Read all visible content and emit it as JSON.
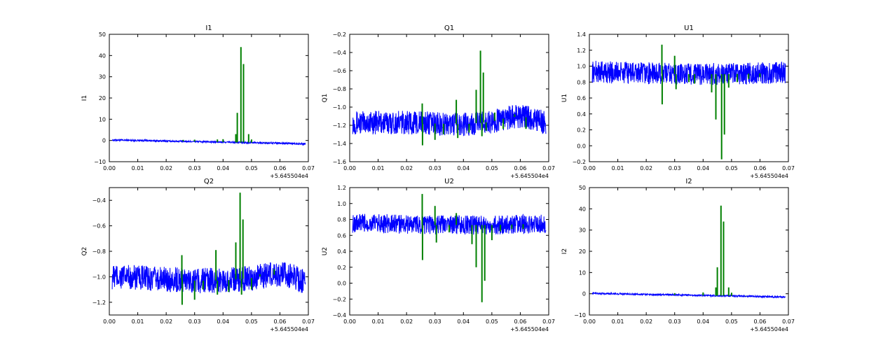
{
  "chart_data": [
    {
      "type": "line",
      "title": "I1",
      "ylabel": "I1",
      "xlabel": "",
      "x_offset": "+5.645504e4",
      "xlim": [
        0.0,
        0.07
      ],
      "ylim": [
        -10,
        50
      ],
      "xticks": [
        "0.00",
        "0.01",
        "0.02",
        "0.03",
        "0.04",
        "0.05",
        "0.06",
        "0.07"
      ],
      "yticks": [
        "−10",
        "0",
        "10",
        "20",
        "30",
        "40",
        "50"
      ],
      "series": [
        {
          "color": "#0000ff",
          "x": [
            0.001,
            0.01,
            0.02,
            0.03,
            0.04,
            0.05,
            0.06,
            0.069
          ],
          "y": [
            0.2,
            0.0,
            -0.3,
            -0.5,
            -0.8,
            -1.0,
            -1.3,
            -1.6
          ],
          "band": 0.4
        },
        {
          "color": "#008000",
          "spikes": [
            [
              0.026,
              0.3
            ],
            [
              0.03,
              0.4
            ],
            [
              0.038,
              0.5
            ],
            [
              0.04,
              0.6
            ],
            [
              0.0445,
              3.0
            ],
            [
              0.045,
              13.0
            ],
            [
              0.0463,
              44.0
            ],
            [
              0.0472,
              36.0
            ],
            [
              0.049,
              3.0
            ],
            [
              0.05,
              0.5
            ],
            [
              0.055,
              -1.0
            ]
          ]
        }
      ]
    },
    {
      "type": "line",
      "title": "Q1",
      "ylabel": "Q1",
      "xlabel": "",
      "x_offset": "+5.645504e4",
      "xlim": [
        0.0,
        0.07
      ],
      "ylim": [
        -1.6,
        -0.2
      ],
      "xticks": [
        "0.00",
        "0.01",
        "0.02",
        "0.03",
        "0.04",
        "0.05",
        "0.06",
        "0.07"
      ],
      "yticks": [
        "−1.6",
        "−1.4",
        "−1.2",
        "−1.0",
        "−0.8",
        "−0.6",
        "−0.4",
        "−0.2"
      ],
      "series": [
        {
          "color": "#0000ff",
          "x": [
            0.001,
            0.01,
            0.02,
            0.03,
            0.04,
            0.05,
            0.055,
            0.06,
            0.065,
            0.069
          ],
          "y": [
            -1.17,
            -1.17,
            -1.17,
            -1.18,
            -1.19,
            -1.16,
            -1.12,
            -1.1,
            -1.13,
            -1.18
          ],
          "band": 0.13
        },
        {
          "color": "#008000",
          "spikes": [
            [
              0.0255,
              -0.96
            ],
            [
              0.0256,
              -1.42
            ],
            [
              0.03,
              -1.36
            ],
            [
              0.033,
              -1.3
            ],
            [
              0.0375,
              -0.92
            ],
            [
              0.038,
              -1.34
            ],
            [
              0.042,
              -1.28
            ],
            [
              0.0445,
              -0.81
            ],
            [
              0.046,
              -0.38
            ],
            [
              0.0465,
              -1.32
            ],
            [
              0.047,
              -0.62
            ],
            [
              0.048,
              -1.26
            ],
            [
              0.051,
              -1.06
            ],
            [
              0.054,
              -1.24
            ],
            [
              0.058,
              -1.08
            ],
            [
              0.062,
              -1.24
            ]
          ]
        }
      ]
    },
    {
      "type": "line",
      "title": "U1",
      "ylabel": "U1",
      "xlabel": "",
      "x_offset": "+5.645504e4",
      "xlim": [
        0.0,
        0.07
      ],
      "ylim": [
        -0.2,
        1.4
      ],
      "xticks": [
        "0.00",
        "0.01",
        "0.02",
        "0.03",
        "0.04",
        "0.05",
        "0.06",
        "0.07"
      ],
      "yticks": [
        "−0.2",
        "0.0",
        "0.2",
        "0.4",
        "0.6",
        "0.8",
        "1.0",
        "1.2",
        "1.4"
      ],
      "series": [
        {
          "color": "#0000ff",
          "x": [
            0.001,
            0.01,
            0.02,
            0.03,
            0.04,
            0.05,
            0.06,
            0.069
          ],
          "y": [
            0.93,
            0.92,
            0.91,
            0.9,
            0.9,
            0.9,
            0.91,
            0.92
          ],
          "band": 0.14
        },
        {
          "color": "#008000",
          "spikes": [
            [
              0.0255,
              1.27
            ],
            [
              0.0256,
              0.52
            ],
            [
              0.03,
              1.13
            ],
            [
              0.0305,
              0.71
            ],
            [
              0.035,
              0.8
            ],
            [
              0.037,
              0.78
            ],
            [
              0.043,
              0.67
            ],
            [
              0.0445,
              0.33
            ],
            [
              0.0465,
              -0.17
            ],
            [
              0.0475,
              0.14
            ],
            [
              0.049,
              0.73
            ],
            [
              0.052,
              0.8
            ],
            [
              0.056,
              0.84
            ],
            [
              0.06,
              0.86
            ]
          ]
        }
      ]
    },
    {
      "type": "line",
      "title": "Q2",
      "ylabel": "Q2",
      "xlabel": "",
      "x_offset": "+5.645504e4",
      "xlim": [
        0.0,
        0.07
      ],
      "ylim": [
        -1.3,
        -0.3
      ],
      "xticks": [
        "0.00",
        "0.01",
        "0.02",
        "0.03",
        "0.04",
        "0.05",
        "0.06",
        "0.07"
      ],
      "yticks": [
        "−1.2",
        "−1.0",
        "−0.8",
        "−0.6",
        "−0.4"
      ],
      "series": [
        {
          "color": "#0000ff",
          "x": [
            0.001,
            0.01,
            0.02,
            0.03,
            0.04,
            0.05,
            0.055,
            0.06,
            0.065,
            0.069
          ],
          "y": [
            -1.0,
            -1.01,
            -1.02,
            -1.03,
            -1.03,
            -1.01,
            -0.99,
            -0.98,
            -1.0,
            -1.05
          ],
          "band": 0.1
        },
        {
          "color": "#008000",
          "spikes": [
            [
              0.0255,
              -0.83
            ],
            [
              0.0256,
              -1.22
            ],
            [
              0.03,
              -1.18
            ],
            [
              0.033,
              -1.1
            ],
            [
              0.0375,
              -0.79
            ],
            [
              0.038,
              -1.14
            ],
            [
              0.042,
              -1.12
            ],
            [
              0.0445,
              -0.73
            ],
            [
              0.046,
              -0.34
            ],
            [
              0.0465,
              -1.14
            ],
            [
              0.047,
              -0.55
            ],
            [
              0.05,
              -1.1
            ],
            [
              0.053,
              -0.98
            ],
            [
              0.058,
              -0.94
            ]
          ]
        }
      ]
    },
    {
      "type": "line",
      "title": "U2",
      "ylabel": "U2",
      "xlabel": "",
      "x_offset": "+5.645504e4",
      "xlim": [
        0.0,
        0.07
      ],
      "ylim": [
        -0.4,
        1.2
      ],
      "xticks": [
        "0.00",
        "0.01",
        "0.02",
        "0.03",
        "0.04",
        "0.05",
        "0.06",
        "0.07"
      ],
      "yticks": [
        "−0.4",
        "−0.2",
        "0.0",
        "0.2",
        "0.4",
        "0.6",
        "0.8",
        "1.0",
        "1.2"
      ],
      "series": [
        {
          "color": "#0000ff",
          "x": [
            0.001,
            0.01,
            0.02,
            0.03,
            0.04,
            0.05,
            0.06,
            0.069
          ],
          "y": [
            0.75,
            0.75,
            0.74,
            0.73,
            0.73,
            0.73,
            0.74,
            0.75
          ],
          "band": 0.12
        },
        {
          "color": "#008000",
          "spikes": [
            [
              0.0255,
              1.12
            ],
            [
              0.0256,
              0.29
            ],
            [
              0.03,
              0.97
            ],
            [
              0.0305,
              0.51
            ],
            [
              0.035,
              0.64
            ],
            [
              0.0375,
              0.88
            ],
            [
              0.043,
              0.49
            ],
            [
              0.0445,
              0.2
            ],
            [
              0.0465,
              -0.24
            ],
            [
              0.0475,
              0.03
            ],
            [
              0.05,
              0.54
            ],
            [
              0.053,
              0.65
            ],
            [
              0.057,
              0.68
            ],
            [
              0.061,
              0.68
            ]
          ]
        }
      ]
    },
    {
      "type": "line",
      "title": "I2",
      "ylabel": "I2",
      "xlabel": "",
      "x_offset": "+5.645504e4",
      "xlim": [
        0.0,
        0.07
      ],
      "ylim": [
        -10,
        50
      ],
      "xticks": [
        "0.00",
        "0.01",
        "0.02",
        "0.03",
        "0.04",
        "0.05",
        "0.06",
        "0.07"
      ],
      "yticks": [
        "−10",
        "0",
        "10",
        "20",
        "30",
        "40",
        "50"
      ],
      "series": [
        {
          "color": "#0000ff",
          "x": [
            0.001,
            0.01,
            0.02,
            0.03,
            0.04,
            0.05,
            0.06,
            0.069
          ],
          "y": [
            0.2,
            0.0,
            -0.3,
            -0.5,
            -0.8,
            -1.0,
            -1.3,
            -1.6
          ],
          "band": 0.4
        },
        {
          "color": "#008000",
          "spikes": [
            [
              0.03,
              0.3
            ],
            [
              0.04,
              0.6
            ],
            [
              0.0445,
              3.0
            ],
            [
              0.045,
              12.5
            ],
            [
              0.0463,
              41.5
            ],
            [
              0.0472,
              34.0
            ],
            [
              0.049,
              3.0
            ],
            [
              0.05,
              0.5
            ],
            [
              0.055,
              -1.0
            ]
          ]
        }
      ]
    }
  ]
}
